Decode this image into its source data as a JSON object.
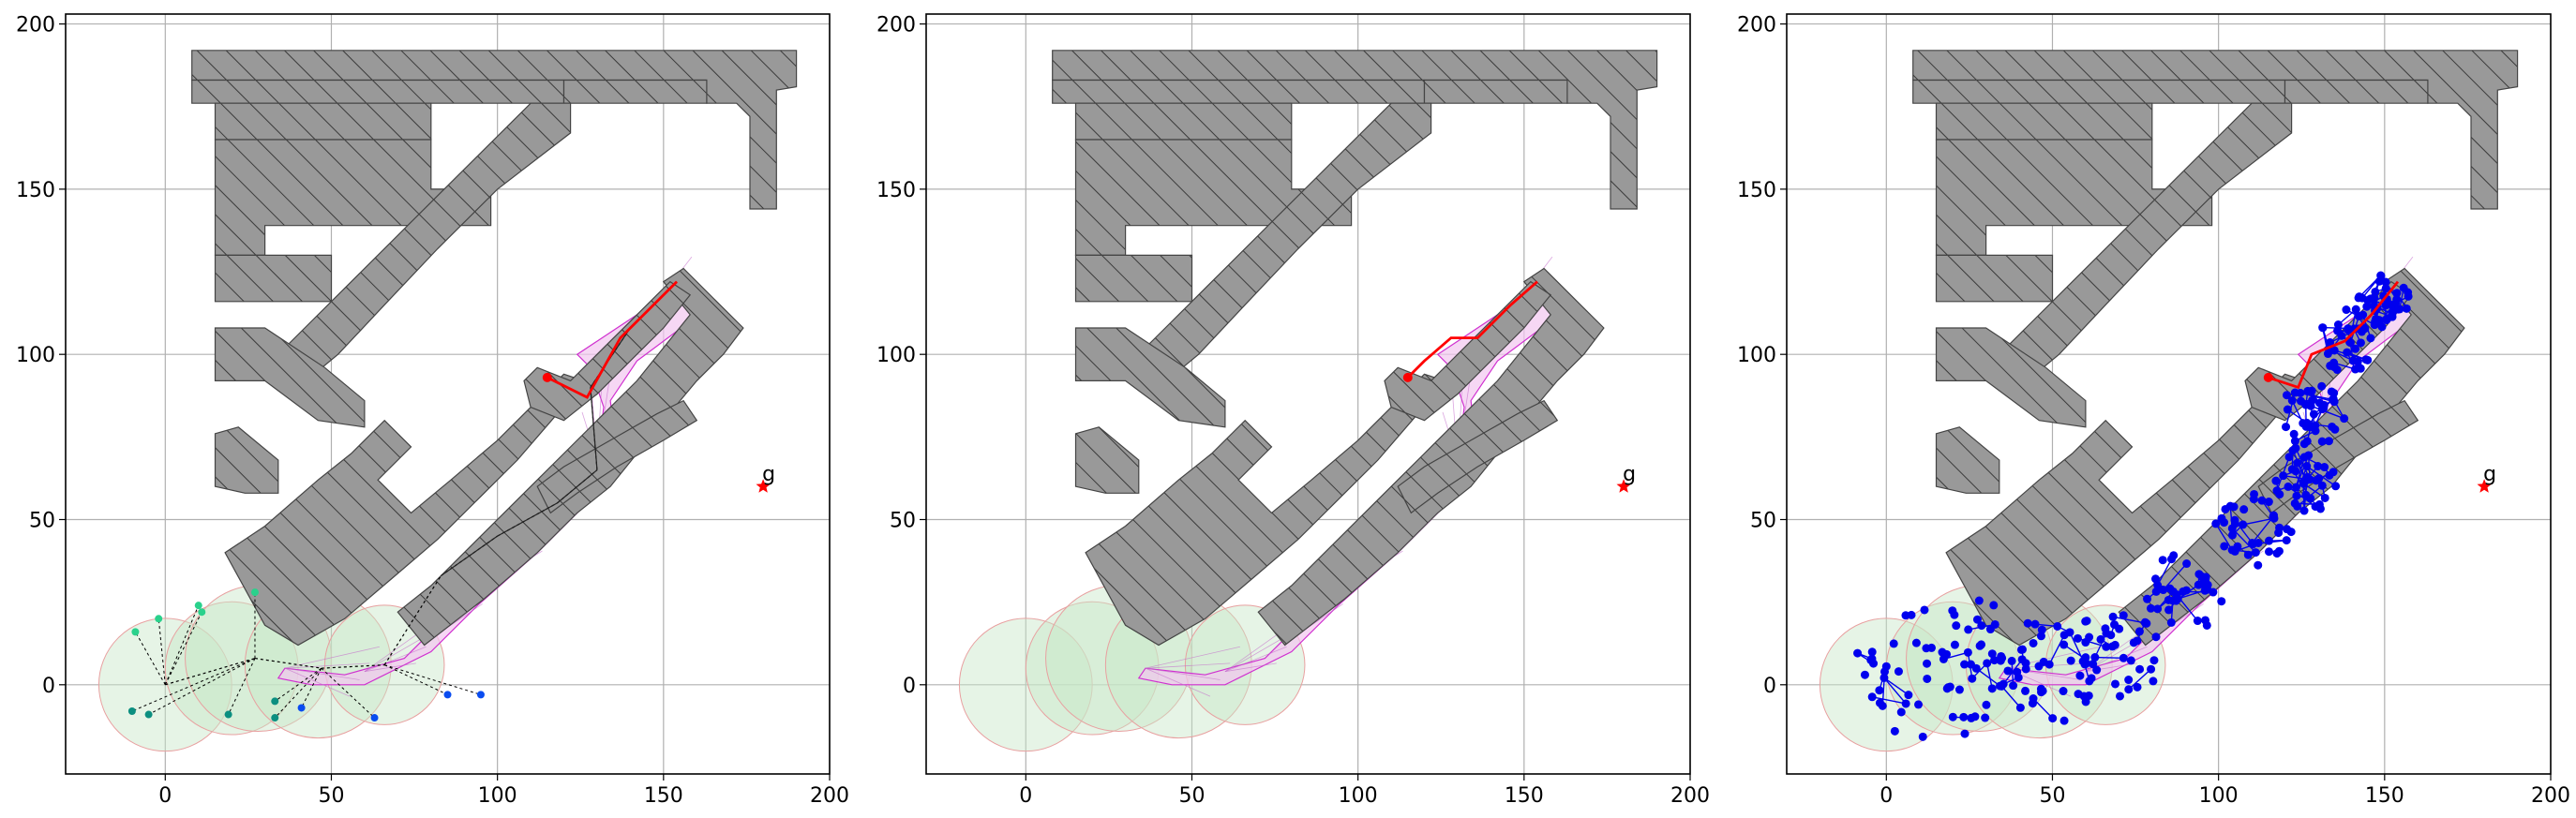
{
  "figure": {
    "panels": [
      "left-panel",
      "middle-panel",
      "right-panel"
    ]
  },
  "colors": {
    "obstacle_fill": "#999999",
    "obstacle_edge": "#444444",
    "circle_fill": "#c8e6c8",
    "circle_edge": "#e8a0a0",
    "corridor_fill": "#f2c6f0",
    "corridor_edge": "#d030d0",
    "path": "#ff0000",
    "goal": "#ff0000",
    "tree_nodes": "#0000ee",
    "leaf_cmap": [
      "#2ad18c",
      "#0b8f80",
      "#0a4cf0"
    ]
  },
  "chart_data": [
    {
      "type": "scatter",
      "name": "panel-1",
      "title": "",
      "xlabel": "",
      "ylabel": "",
      "xlim": [
        -30,
        200
      ],
      "ylim": [
        -27,
        203
      ],
      "xticks": [
        0,
        50,
        100,
        150,
        200
      ],
      "yticks": [
        0,
        50,
        100,
        150,
        200
      ],
      "xtick_labels": [
        "0",
        "50",
        "100",
        "150",
        "200"
      ],
      "ytick_labels": [
        "0",
        "50",
        "100",
        "150",
        "200"
      ],
      "grid": true,
      "goal": {
        "x": 180,
        "y": 60,
        "label": "g"
      },
      "start": {
        "x": 115,
        "y": 93
      },
      "path": [
        [
          115,
          93
        ],
        [
          127,
          87
        ],
        [
          137,
          105
        ],
        [
          154,
          122
        ]
      ],
      "leaf_nodes": [
        [
          -9,
          16
        ],
        [
          -2,
          20
        ],
        [
          10,
          24
        ],
        [
          11,
          22
        ],
        [
          27,
          28
        ],
        [
          -10,
          -8
        ],
        [
          -5,
          -9
        ],
        [
          19,
          -9
        ],
        [
          33,
          -5
        ],
        [
          33,
          -10
        ],
        [
          41,
          -7
        ],
        [
          63,
          -10
        ],
        [
          85,
          -3
        ],
        [
          95,
          -3
        ]
      ]
    },
    {
      "type": "scatter",
      "name": "panel-2",
      "title": "",
      "xlabel": "",
      "ylabel": "",
      "xlim": [
        -30,
        200
      ],
      "ylim": [
        -27,
        203
      ],
      "xticks": [
        0,
        50,
        100,
        150,
        200
      ],
      "yticks": [
        0,
        50,
        100,
        150,
        200
      ],
      "xtick_labels": [
        "0",
        "50",
        "100",
        "150",
        "200"
      ],
      "ytick_labels": [
        "0",
        "50",
        "100",
        "150",
        "200"
      ],
      "grid": true,
      "goal": {
        "x": 180,
        "y": 60,
        "label": "g"
      },
      "start": {
        "x": 115,
        "y": 93
      },
      "path": [
        [
          115,
          93
        ],
        [
          120,
          98
        ],
        [
          128,
          105
        ],
        [
          136,
          105
        ],
        [
          146,
          115
        ],
        [
          154,
          122
        ]
      ]
    },
    {
      "type": "scatter",
      "name": "panel-3",
      "title": "",
      "xlabel": "",
      "ylabel": "",
      "xlim": [
        -30,
        200
      ],
      "ylim": [
        -27,
        203
      ],
      "xticks": [
        0,
        50,
        100,
        150,
        200
      ],
      "yticks": [
        0,
        50,
        100,
        150,
        200
      ],
      "xtick_labels": [
        "0",
        "50",
        "100",
        "150",
        "200"
      ],
      "ytick_labels": [
        "0",
        "50",
        "100",
        "150",
        "200"
      ],
      "grid": true,
      "goal": {
        "x": 180,
        "y": 60,
        "label": "g"
      },
      "start": {
        "x": 115,
        "y": 93
      },
      "path": [
        [
          115,
          93
        ],
        [
          124,
          90
        ],
        [
          128,
          100
        ],
        [
          138,
          104
        ],
        [
          146,
          112
        ],
        [
          154,
          122
        ]
      ]
    }
  ]
}
